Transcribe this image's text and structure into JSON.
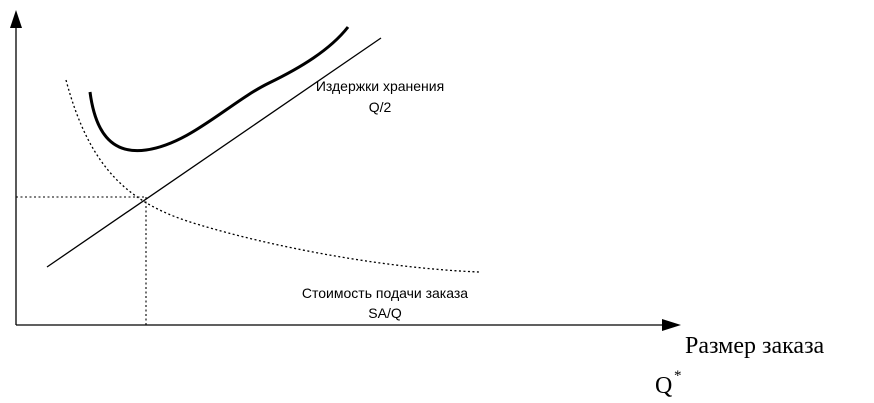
{
  "diagram": {
    "labels": {
      "holding_cost_name": "Издержки хранения",
      "holding_cost_formula": "Q/2",
      "ordering_cost_name": "Стоимость подачи заказа",
      "ordering_cost_formula": "SA/Q",
      "x_axis_title": "Размер заказа",
      "optimum_symbol": "Q",
      "optimum_superscript": "*"
    },
    "style": {
      "line_color": "#000000",
      "background": "#ffffff"
    }
  }
}
